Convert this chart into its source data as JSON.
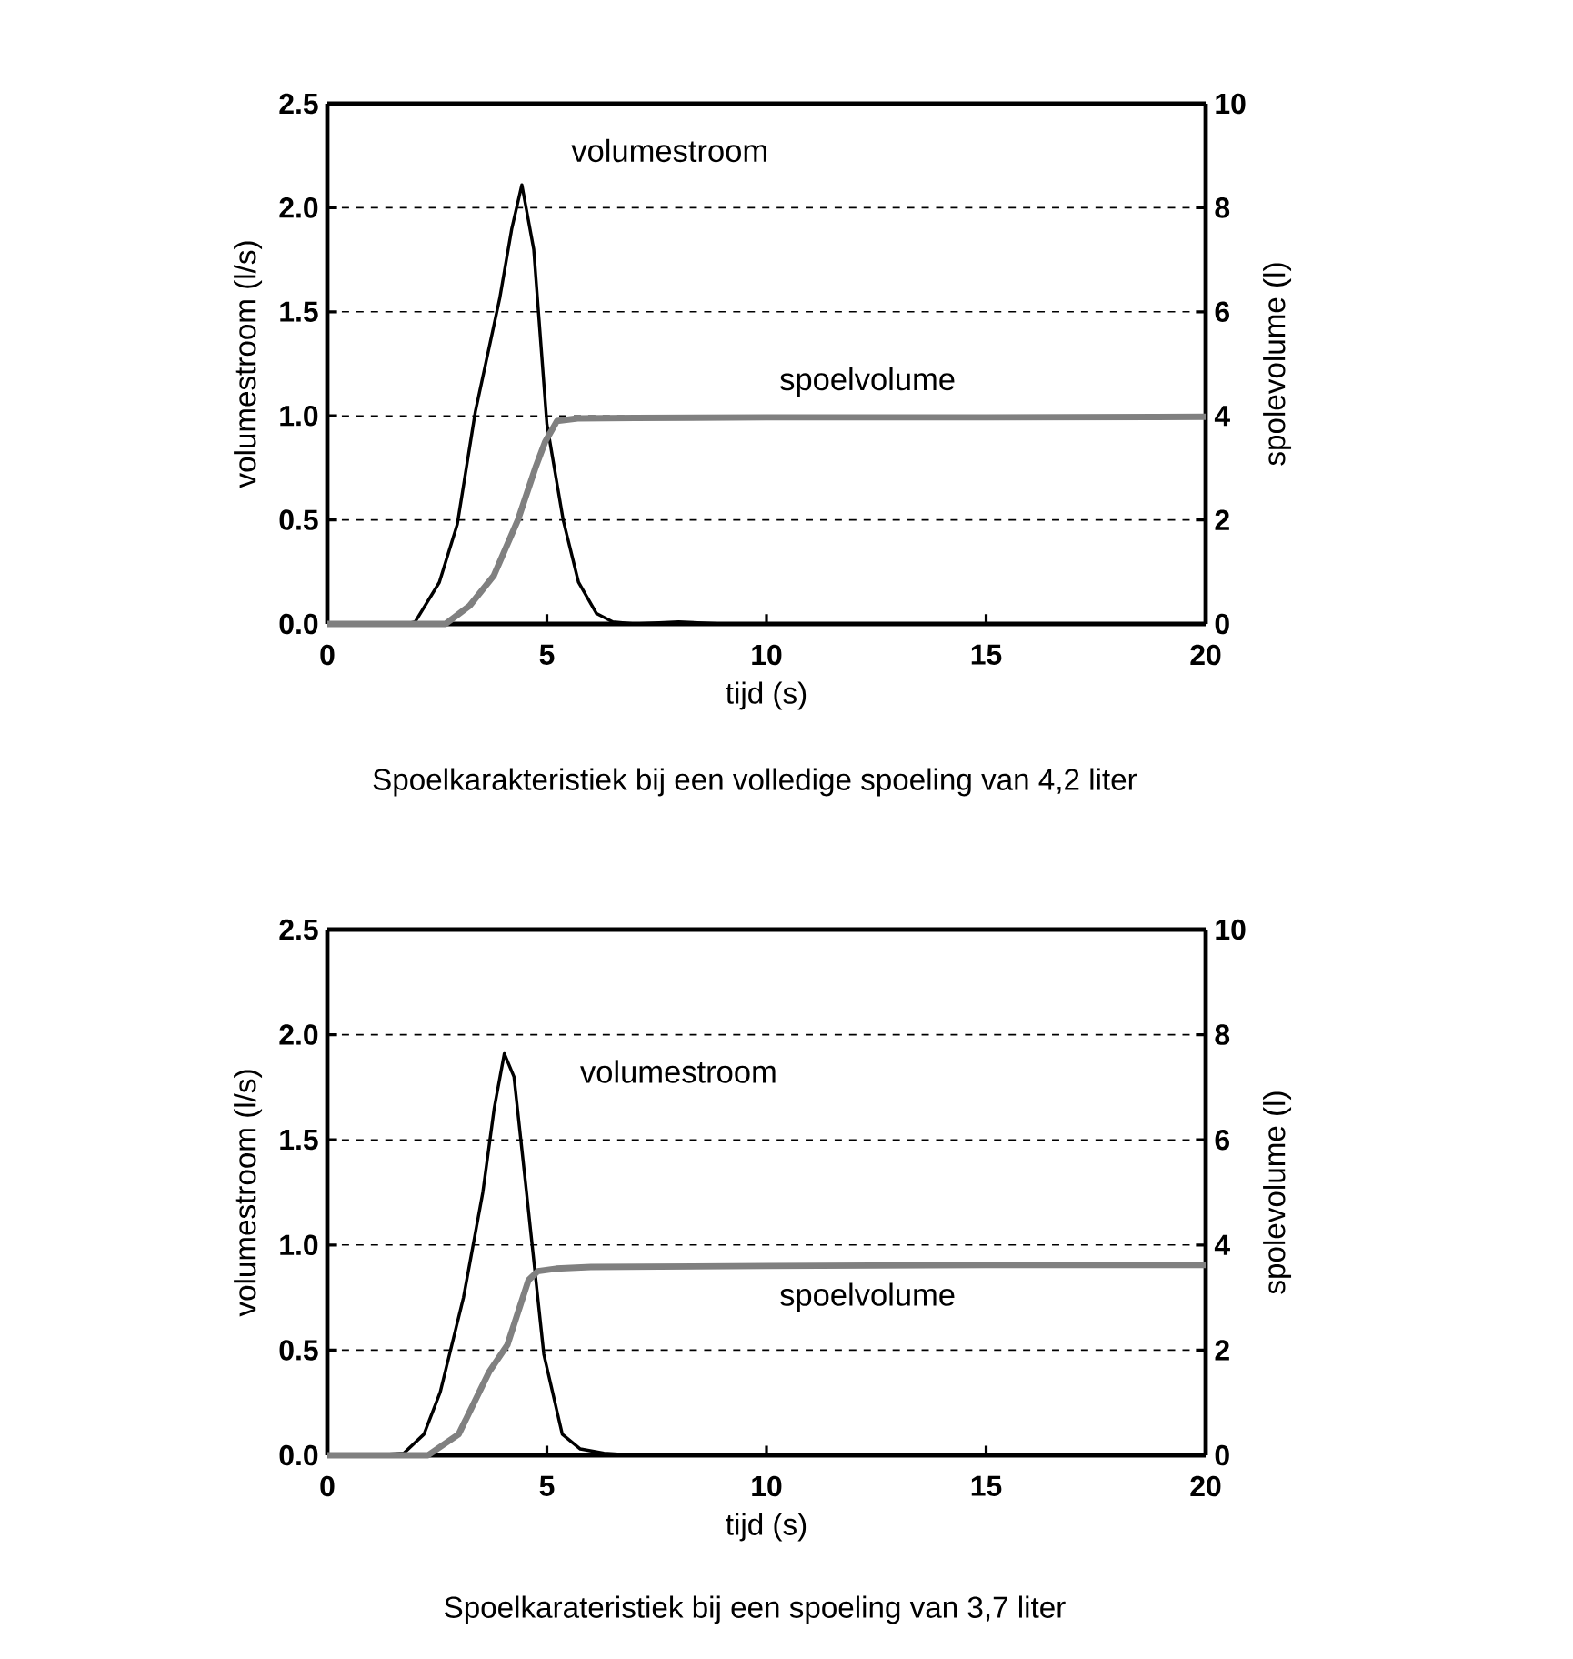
{
  "chart_data": [
    {
      "type": "line",
      "xlabel": "tijd (s)",
      "ylabel": "volumestroom (l/s)",
      "y2label": "spolevolume (l)",
      "annotations": [
        "Spoelkarakteristiek bij een volledige spoeling van 4,2 liter"
      ],
      "xlim": [
        0,
        20
      ],
      "xticks": [
        0,
        5,
        10,
        15,
        20
      ],
      "ylim": [
        0,
        2.5
      ],
      "yticks": [
        {
          "value": 0,
          "label": "0.0"
        },
        0.5,
        {
          "value": 1,
          "label": "1.0"
        },
        1.5,
        {
          "value": 2,
          "label": "2.0"
        },
        2.5
      ],
      "y2lim": [
        0,
        10
      ],
      "y2ticks": [
        0,
        2,
        4,
        6,
        8,
        10
      ],
      "grid": "y",
      "series": [
        {
          "name": "volumestroom",
          "color": "#000000",
          "x": [
            0,
            1,
            1.8,
            2.0,
            2.55,
            2.96,
            3.37,
            3.93,
            4.2,
            4.43,
            4.7,
            5.0,
            5.37,
            5.72,
            6.13,
            6.5,
            7,
            8,
            9,
            10,
            12,
            14,
            16,
            18,
            20
          ],
          "values": [
            0,
            0,
            0,
            0.01,
            0.2,
            0.48,
            1.02,
            1.57,
            1.9,
            2.11,
            1.8,
            0.96,
            0.5,
            0.2,
            0.05,
            0.01,
            0,
            0.01,
            0,
            0,
            0,
            0,
            0,
            0,
            0
          ]
        },
        {
          "name": "spoelvolume",
          "color": "#808080",
          "axis": "y2",
          "x": [
            0,
            1,
            2,
            2.69,
            3.24,
            3.79,
            4.34,
            4.75,
            4.96,
            5.23,
            5.7,
            7,
            10,
            15,
            20
          ],
          "values": [
            0,
            0,
            0,
            0,
            0.35,
            0.93,
            2.0,
            3.03,
            3.5,
            3.9,
            3.95,
            3.96,
            3.97,
            3.97,
            3.98
          ]
        }
      ]
    },
    {
      "type": "line",
      "xlabel": "tijd (s)",
      "ylabel": "volumestroom (l/s)",
      "y2label": "spolevolume (l)",
      "annotations": [
        "Spoelkarateristiek bij een spoeling van 3,7 liter"
      ],
      "xlim": [
        0,
        20
      ],
      "xticks": [
        0,
        5,
        10,
        15,
        20
      ],
      "ylim": [
        0,
        2.5
      ],
      "yticks": [
        {
          "value": 0,
          "label": "0.0"
        },
        0.5,
        {
          "value": 1,
          "label": "1.0"
        },
        1.5,
        {
          "value": 2,
          "label": "2.0"
        },
        2.5
      ],
      "y2lim": [
        0,
        10
      ],
      "y2ticks": [
        0,
        2,
        4,
        6,
        8,
        10
      ],
      "grid": "y",
      "series": [
        {
          "name": "volumestroom",
          "color": "#000000",
          "x": [
            0,
            1,
            1.74,
            2.2,
            2.57,
            3.1,
            3.54,
            3.8,
            4.03,
            4.25,
            4.51,
            4.93,
            5.35,
            5.76,
            6.3,
            7,
            10,
            15,
            20
          ],
          "values": [
            0,
            0,
            0.01,
            0.1,
            0.3,
            0.75,
            1.25,
            1.65,
            1.91,
            1.8,
            1.3,
            0.48,
            0.1,
            0.03,
            0.01,
            0,
            0,
            0,
            0
          ]
        },
        {
          "name": "spoelvolume",
          "color": "#808080",
          "axis": "y2",
          "x": [
            0,
            1,
            2,
            2.29,
            2.99,
            3.68,
            4.1,
            4.58,
            4.79,
            5.21,
            6,
            10,
            15,
            20
          ],
          "values": [
            0,
            0,
            0,
            0,
            0.4,
            1.58,
            2.1,
            3.33,
            3.5,
            3.55,
            3.58,
            3.6,
            3.62,
            3.62
          ]
        }
      ]
    }
  ]
}
